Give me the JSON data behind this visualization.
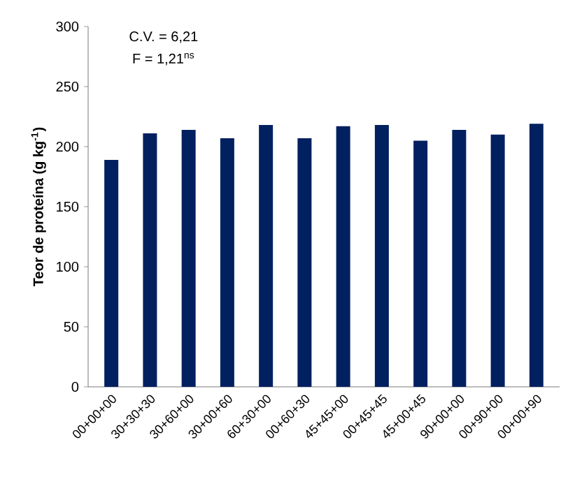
{
  "chart_data": {
    "type": "bar",
    "ylabel": "Teor de proteína (g kg$^{-1}$)",
    "categories": [
      "00+00+00",
      "30+30+30",
      "30+60+00",
      "30+00+60",
      "60+30+00",
      "00+60+30",
      "45+45+00",
      "00+45+45",
      "45+00+45",
      "90+00+00",
      "00+90+00",
      "00+00+90"
    ],
    "values": [
      189,
      211,
      214,
      207,
      218,
      207,
      217,
      218,
      205,
      214,
      210,
      219
    ],
    "color": "#002060",
    "ylim": [
      0,
      300
    ],
    "yticks": [
      0,
      50,
      100,
      150,
      200,
      250,
      300
    ],
    "annotations": [
      "C.V. = 6,21",
      "F = 1,21$^{ns}$"
    ]
  }
}
